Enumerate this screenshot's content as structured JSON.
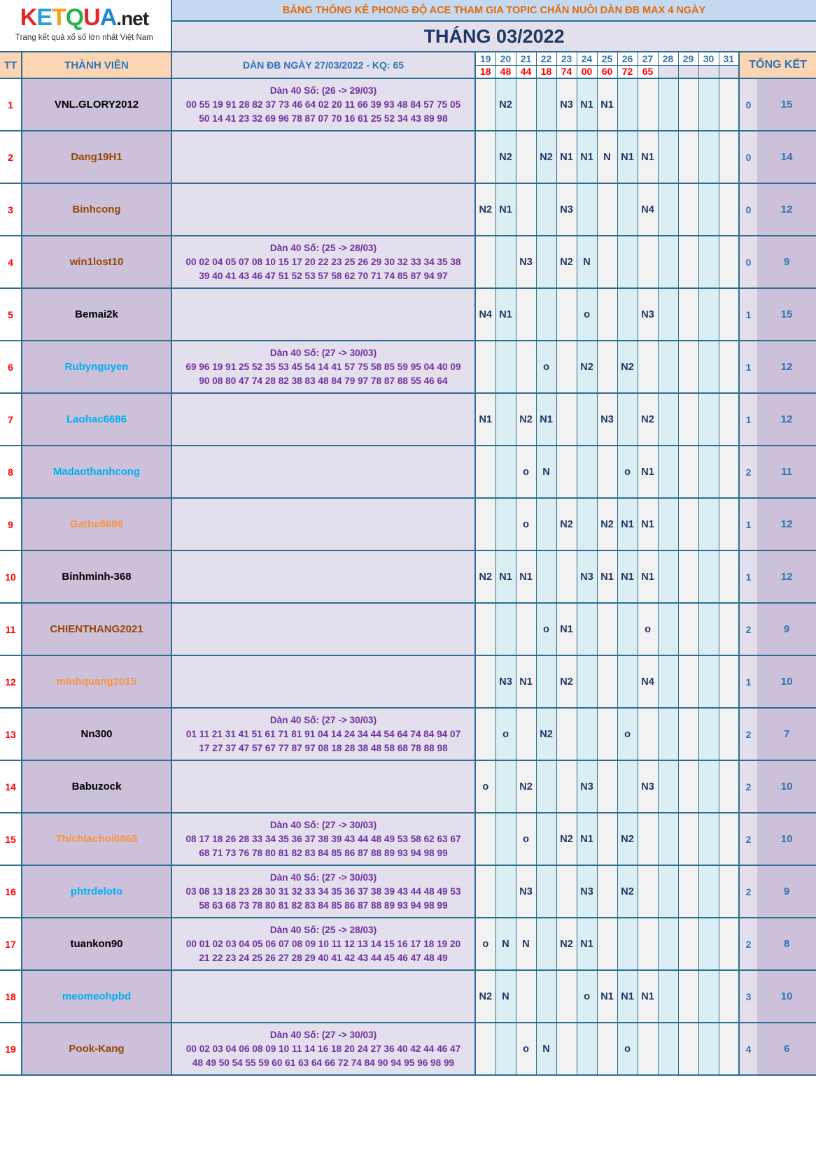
{
  "logo": {
    "k": "K",
    "e": "E",
    "t": "T",
    "q": "Q",
    "u": "U",
    "a": "A",
    "net": ".net",
    "tagline": "Trang kết quả xổ số lớn nhất Việt Nam"
  },
  "colors": {
    "logo_k": "#e8252a",
    "logo_e": "#2b9fd9",
    "logo_t": "#f7a01c",
    "logo_q": "#2bb24c",
    "logo_u": "#e8252a",
    "logo_a": "#1f88d6",
    "logo_net": "#222222"
  },
  "banner": "BẢNG THỐNG KÊ PHONG ĐỘ ACE THAM GIA TOPIC CHĂN NUÔI DÀN ĐB MAX 4 NGÀY",
  "month": "THÁNG 03/2022",
  "headers": {
    "tt": "TT",
    "member": "THÀNH VIÊN",
    "dan": "DÀN ĐB NGÀY 27/03/2022 - KQ: 65",
    "summary": "TỔNG KẾT"
  },
  "days": [
    "19",
    "20",
    "21",
    "22",
    "23",
    "24",
    "25",
    "26",
    "27",
    "28",
    "29",
    "30",
    "31"
  ],
  "results": [
    "18",
    "48",
    "44",
    "18",
    "74",
    "00",
    "60",
    "72",
    "65",
    "",
    "",
    "",
    ""
  ],
  "rows": [
    {
      "tt": "1",
      "name": "VNL.GLORY2012",
      "name_color": "#000000",
      "dan": [
        "Dàn 40 Số: (26 -> 29/03)",
        "00 55 19 91 28 82 37 73 46 64 02 20 11 66 39 93 48 84 57 75 05",
        "50 14 41 23 32 69 96 78 87 07 70 16 61 25 52 34 43 89 98"
      ],
      "marks": [
        "",
        "N2",
        "",
        "",
        "N3",
        "N1",
        "N1",
        "",
        "",
        "",
        "",
        "",
        ""
      ],
      "s1": "0",
      "s2": "15"
    },
    {
      "tt": "2",
      "name": "Dang19H1",
      "name_color": "#974706",
      "dan": [],
      "marks": [
        "",
        "N2",
        "",
        "N2",
        "N1",
        "N1",
        "N",
        "N1",
        "N1",
        "",
        "",
        "",
        ""
      ],
      "s1": "0",
      "s2": "14"
    },
    {
      "tt": "3",
      "name": "Binhcong",
      "name_color": "#974706",
      "dan": [],
      "marks": [
        "N2",
        "N1",
        "",
        "",
        "N3",
        "",
        "",
        "",
        "N4",
        "",
        "",
        "",
        ""
      ],
      "s1": "0",
      "s2": "12"
    },
    {
      "tt": "4",
      "name": "win1lost10",
      "name_color": "#974706",
      "dan": [
        "Dàn 40 Số: (25 -> 28/03)",
        "00 02 04 05 07 08 10 15 17 20 22 23 25 26 29 30 32 33 34 35 38",
        "39 40 41 43 46 47 51 52 53 57 58 62 70 71 74 85 87 94 97"
      ],
      "marks": [
        "",
        "",
        "N3",
        "",
        "N2",
        "N",
        "",
        "",
        "",
        "",
        "",
        "",
        ""
      ],
      "s1": "0",
      "s2": "9"
    },
    {
      "tt": "5",
      "name": "Bemai2k",
      "name_color": "#000000",
      "dan": [],
      "marks": [
        "N4",
        "N1",
        "",
        "",
        "",
        "o",
        "",
        "",
        "N3",
        "",
        "",
        "",
        ""
      ],
      "s1": "1",
      "s2": "15"
    },
    {
      "tt": "6",
      "name": "Rubynguyen",
      "name_color": "#00b0f0",
      "dan": [
        "Dàn 40 Số: (27 -> 30/03)",
        "69 96 19 91 25 52 35 53 45 54 14 41 57 75 58 85 59 95 04 40 09",
        "90 08 80 47 74 28 82 38 83 48 84 79 97 78 87 88 55 46 64"
      ],
      "marks": [
        "",
        "",
        "",
        "o",
        "",
        "N2",
        "",
        "N2",
        "",
        "",
        "",
        "",
        ""
      ],
      "s1": "1",
      "s2": "12"
    },
    {
      "tt": "7",
      "name": "Laohac6686",
      "name_color": "#00b0f0",
      "dan": [],
      "marks": [
        "N1",
        "",
        "N2",
        "N1",
        "",
        "",
        "N3",
        "",
        "N2",
        "",
        "",
        "",
        ""
      ],
      "s1": "1",
      "s2": "12"
    },
    {
      "tt": "8",
      "name": "Madaothanhcong",
      "name_color": "#00b0f0",
      "dan": [],
      "marks": [
        "",
        "",
        "o",
        "N",
        "",
        "",
        "",
        "o",
        "N1",
        "",
        "",
        "",
        ""
      ],
      "s1": "2",
      "s2": "11"
    },
    {
      "tt": "9",
      "name": "Gathe8686",
      "name_color": "#f79646",
      "dan": [],
      "marks": [
        "",
        "",
        "o",
        "",
        "N2",
        "",
        "N2",
        "N1",
        "N1",
        "",
        "",
        "",
        ""
      ],
      "s1": "1",
      "s2": "12"
    },
    {
      "tt": "10",
      "name": "Binhminh-368",
      "name_color": "#000000",
      "dan": [],
      "marks": [
        "N2",
        "N1",
        "N1",
        "",
        "",
        "N3",
        "N1",
        "N1",
        "N1",
        "",
        "",
        "",
        ""
      ],
      "s1": "1",
      "s2": "12"
    },
    {
      "tt": "11",
      "name": "CHIENTHANG2021",
      "name_color": "#974706",
      "dan": [],
      "marks": [
        "",
        "",
        "",
        "o",
        "N1",
        "",
        "",
        "",
        "o",
        "",
        "",
        "",
        ""
      ],
      "s1": "2",
      "s2": "9"
    },
    {
      "tt": "12",
      "name": "minhquang2015",
      "name_color": "#f79646",
      "dan": [],
      "marks": [
        "",
        "N3",
        "N1",
        "",
        "N2",
        "",
        "",
        "",
        "N4",
        "",
        "",
        "",
        ""
      ],
      "s1": "1",
      "s2": "10"
    },
    {
      "tt": "13",
      "name": "Nn300",
      "name_color": "#000000",
      "dan": [
        "Dàn 40 Số: (27 -> 30/03)",
        "01 11 21 31 41 51 61 71 81 91 04 14 24 34 44 54 64 74 84 94 07",
        "17 27 37 47 57 67 77 87 97 08 18 28 38 48 58 68 78 88 98"
      ],
      "marks": [
        "",
        "o",
        "",
        "N2",
        "",
        "",
        "",
        "o",
        "",
        "",
        "",
        "",
        ""
      ],
      "s1": "2",
      "s2": "7"
    },
    {
      "tt": "14",
      "name": "Babuzock",
      "name_color": "#000000",
      "dan": [],
      "marks": [
        "o",
        "",
        "N2",
        "",
        "",
        "N3",
        "",
        "",
        "N3",
        "",
        "",
        "",
        ""
      ],
      "s1": "2",
      "s2": "10"
    },
    {
      "tt": "15",
      "name": "Thichlachoi6868",
      "name_color": "#f79646",
      "dan": [
        "Dàn 40 Số: (27 -> 30/03)",
        "08 17 18 26 28 33 34 35 36 37 38 39 43 44 48 49 53 58 62 63 67",
        "68 71 73 76 78 80 81 82 83 84 85 86 87 88 89 93 94 98 99"
      ],
      "marks": [
        "",
        "",
        "o",
        "",
        "N2",
        "N1",
        "",
        "N2",
        "",
        "",
        "",
        "",
        ""
      ],
      "s1": "2",
      "s2": "10"
    },
    {
      "tt": "16",
      "name": "phtrdeloto",
      "name_color": "#00b0f0",
      "dan": [
        "Dàn 40 Số: (27 -> 30/03)",
        "03 08 13 18 23 28 30 31 32 33 34 35 36 37 38 39 43 44 48 49 53",
        "58 63 68 73 78 80 81 82 83 84 85 86 87 88 89 93 94 98 99"
      ],
      "marks": [
        "",
        "",
        "N3",
        "",
        "",
        "N3",
        "",
        "N2",
        "",
        "",
        "",
        "",
        ""
      ],
      "s1": "2",
      "s2": "9"
    },
    {
      "tt": "17",
      "name": "tuankon90",
      "name_color": "#000000",
      "dan": [
        "Dàn 40 Số: (25 -> 28/03)",
        "00 01 02 03 04 05 06 07 08 09 10 11 12 13 14 15 16 17 18 19 20",
        "21 22 23 24 25 26 27 28 29 40 41 42 43 44 45 46 47 48 49"
      ],
      "marks": [
        "o",
        "N",
        "N",
        "",
        "N2",
        "N1",
        "",
        "",
        "",
        "",
        "",
        "",
        ""
      ],
      "s1": "2",
      "s2": "8"
    },
    {
      "tt": "18",
      "name": "meomeohpbd",
      "name_color": "#00b0f0",
      "dan": [],
      "marks": [
        "N2",
        "N",
        "",
        "",
        "",
        "o",
        "N1",
        "N1",
        "N1",
        "",
        "",
        "",
        ""
      ],
      "s1": "3",
      "s2": "10"
    },
    {
      "tt": "19",
      "name": "Pook-Kang",
      "name_color": "#974706",
      "dan": [
        "Dàn 40 Số: (27 -> 30/03)",
        "00 02 03 04 06 08 09 10 11 14 16 18 20 24 27 36 40 42 44 46 47",
        "48 49 50 54 55 59 60 61 63 64 66 72 74 84 90 94 95 96 98 99"
      ],
      "marks": [
        "",
        "",
        "o",
        "N",
        "",
        "",
        "",
        "o",
        "",
        "",
        "",
        "",
        ""
      ],
      "s1": "4",
      "s2": "6"
    }
  ]
}
